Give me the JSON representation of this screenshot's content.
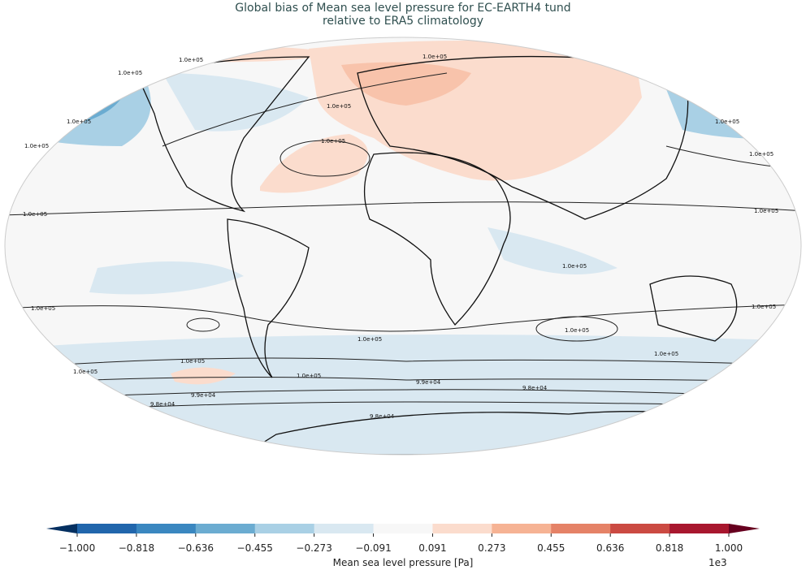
{
  "title": {
    "line1": "Global bias of Mean sea level pressure for EC-EARTH4 tund",
    "line2": "relative to ERA5 climatology"
  },
  "map": {
    "projection": "Robinson",
    "contour_labels": [
      "1.0e+05",
      "1.0e+05",
      "1.0e+05",
      "1.0e+05",
      "1.0e+05",
      "1.0e+05",
      "1.0e+05",
      "1.0e+05",
      "1.0e+05",
      "1.0e+05",
      "1.0e+05",
      "1.0e+05",
      "1.0e+05",
      "9.9e+04",
      "9.9e+04",
      "9.8e+04",
      "9.8e+04",
      "9.8e+04",
      "1.0e+05",
      "1.0e+05",
      "1.0e+05",
      "1.0e+05",
      "1.0e+05",
      "1.0e+05",
      "1.0e+05"
    ]
  },
  "colorbar": {
    "label": "Mean sea level pressure [Pa]",
    "exponent": "1e3",
    "ticks": [
      "−1.000",
      "−0.818",
      "−0.636",
      "−0.455",
      "−0.273",
      "−0.091",
      "0.091",
      "0.273",
      "0.455",
      "0.636",
      "0.818",
      "1.000"
    ],
    "colors": [
      "#2166ac",
      "#3a87c0",
      "#6bacd1",
      "#a9d0e5",
      "#d9e8f1",
      "#f7f7f7",
      "#fbdccd",
      "#f6b394",
      "#e58267",
      "#cb4a42",
      "#a8172e"
    ],
    "under_color": "#053061",
    "over_color": "#67001f",
    "extend": "both"
  }
}
